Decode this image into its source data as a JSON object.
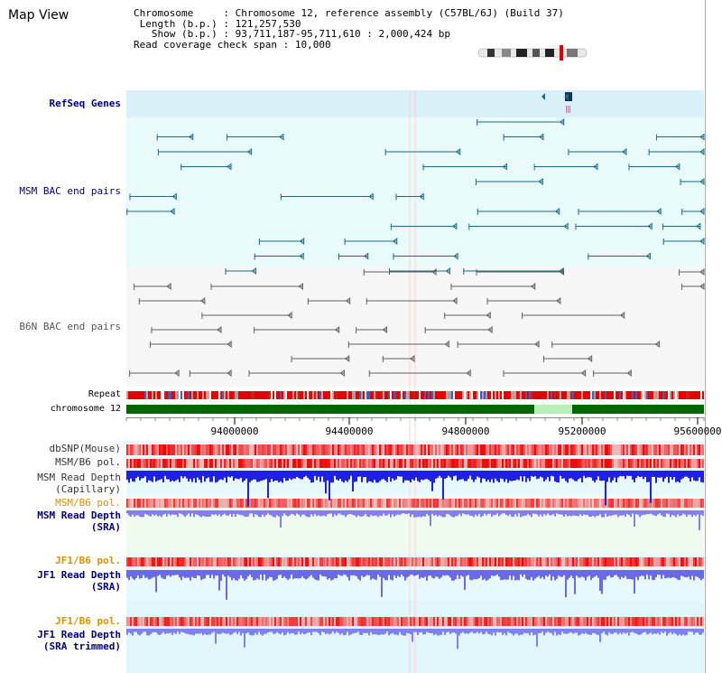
{
  "page_title": "Map View",
  "header": {
    "chromosome_label": "Chromosome",
    "chromosome_value": "Chromosome 12, reference assembly (C57BL/6J) (Build 37)",
    "length_label": "Length (b.p.)",
    "length_value": "121,257,530",
    "show_label": "Show (b.p.)",
    "show_value": "93,711,187-95,711,610 : 2,000,424 bp",
    "coverage_label": "Read coverage check span",
    "coverage_value": "10,000"
  },
  "tracks": {
    "refseq": "RefSeq Genes",
    "msm_bac": "MSM BAC end pairs",
    "b6n_bac": "B6N BAC end pairs",
    "repeat": "Repeat",
    "chromosome": "chromosome 12",
    "dbsnp": "dbSNP(Mouse)",
    "msm_b6_pol_1": "MSM/B6 pol.",
    "msm_read_depth_cap_1": "MSM Read Depth",
    "msm_read_depth_cap_2": "(Capillary)",
    "msm_b6_pol_2": "MSM/B6 pol.",
    "msm_read_depth_sra_1": "MSM Read Depth",
    "msm_read_depth_sra_2": "(SRA)",
    "jf1_b6_pol_1": "JF1/B6 pol.",
    "jf1_read_depth_sra_1": "JF1 Read Depth",
    "jf1_read_depth_sra_2": "(SRA)",
    "jf1_b6_pol_2": "JF1/B6 pol.",
    "jf1_read_depth_trim_1": "JF1 Read Depth",
    "jf1_read_depth_trim_2": "(SRA trimmed)"
  },
  "axis": {
    "ticks": [
      "94000000",
      "94400000",
      "94800000",
      "95200000",
      "95600000"
    ]
  },
  "colors": {
    "refseq_bg": "#d8f0f8",
    "gene_color": "#1a6b8a",
    "b6n_color": "#606060",
    "chromosome_bar": "#006600",
    "snp_red": "#e60000",
    "depth_blue": "#2020e0",
    "label_blue": "#000080",
    "label_orange": "#e09000"
  }
}
